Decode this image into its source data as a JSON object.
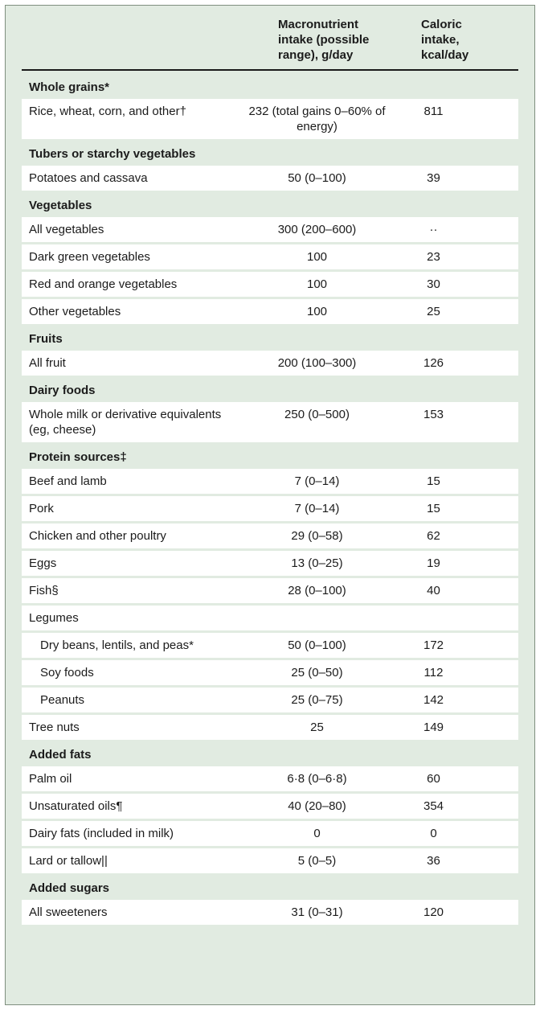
{
  "colors": {
    "table_background": "#e1ebe1",
    "data_row_background": "#ffffff",
    "header_rule": "#1a1a1a",
    "outer_border": "#7f8f7f",
    "text": "#1b1b1b"
  },
  "table": {
    "columns": [
      "",
      "Macronutrient intake (possible range), g/day",
      "Caloric intake, kcal/day"
    ],
    "rows": [
      {
        "type": "section",
        "label": "Whole grains*"
      },
      {
        "type": "data",
        "label": "Rice, wheat, corn, and other†",
        "macro": "232 (total gains 0–60% of energy)",
        "kcal": "811"
      },
      {
        "type": "section",
        "label": "Tubers or starchy vegetables"
      },
      {
        "type": "data",
        "label": "Potatoes and cassava",
        "macro": "50 (0–100)",
        "kcal": "39"
      },
      {
        "type": "section",
        "label": "Vegetables"
      },
      {
        "type": "data",
        "label": "All vegetables",
        "macro": "300 (200–600)",
        "kcal": "··"
      },
      {
        "type": "data",
        "label": "Dark green vegetables",
        "macro": "100",
        "kcal": "23"
      },
      {
        "type": "data",
        "label": "Red and orange vegetables",
        "macro": "100",
        "kcal": "30"
      },
      {
        "type": "data",
        "label": "Other vegetables",
        "macro": "100",
        "kcal": "25"
      },
      {
        "type": "section",
        "label": "Fruits"
      },
      {
        "type": "data",
        "label": "All fruit",
        "macro": "200 (100–300)",
        "kcal": "126"
      },
      {
        "type": "section",
        "label": "Dairy foods"
      },
      {
        "type": "data",
        "label": "Whole milk or derivative equivalents (eg, cheese)",
        "macro": "250 (0–500)",
        "kcal": "153"
      },
      {
        "type": "section",
        "label": "Protein sources‡"
      },
      {
        "type": "data",
        "label": "Beef and lamb",
        "macro": "7 (0–14)",
        "kcal": "15"
      },
      {
        "type": "data",
        "label": "Pork",
        "macro": "7 (0–14)",
        "kcal": "15"
      },
      {
        "type": "data",
        "label": "Chicken and other poultry",
        "macro": "29 (0–58)",
        "kcal": "62"
      },
      {
        "type": "data",
        "label": "Eggs",
        "macro": "13 (0–25)",
        "kcal": "19"
      },
      {
        "type": "data",
        "label": "Fish§",
        "macro": "28 (0–100)",
        "kcal": "40"
      },
      {
        "type": "data",
        "label": "Legumes",
        "macro": "",
        "kcal": ""
      },
      {
        "type": "data",
        "indent": true,
        "label": "Dry beans, lentils, and peas*",
        "macro": "50 (0–100)",
        "kcal": "172"
      },
      {
        "type": "data",
        "indent": true,
        "label": "Soy foods",
        "macro": "25 (0–50)",
        "kcal": "112"
      },
      {
        "type": "data",
        "indent": true,
        "label": "Peanuts",
        "macro": "25 (0–75)",
        "kcal": "142"
      },
      {
        "type": "data",
        "label": "Tree nuts",
        "macro": "25",
        "kcal": "149"
      },
      {
        "type": "section",
        "label": "Added fats"
      },
      {
        "type": "data",
        "label": "Palm oil",
        "macro": "6·8 (0–6·8)",
        "kcal": "60"
      },
      {
        "type": "data",
        "label": "Unsaturated oils¶",
        "macro": "40 (20–80)",
        "kcal": "354"
      },
      {
        "type": "data",
        "label": "Dairy fats (included in milk)",
        "macro": "0",
        "kcal": "0"
      },
      {
        "type": "data",
        "label": "Lard or tallow||",
        "macro": "5 (0–5)",
        "kcal": "36"
      },
      {
        "type": "section",
        "label": "Added sugars"
      },
      {
        "type": "data",
        "label": "All sweeteners",
        "macro": "31 (0–31)",
        "kcal": "120"
      }
    ]
  }
}
